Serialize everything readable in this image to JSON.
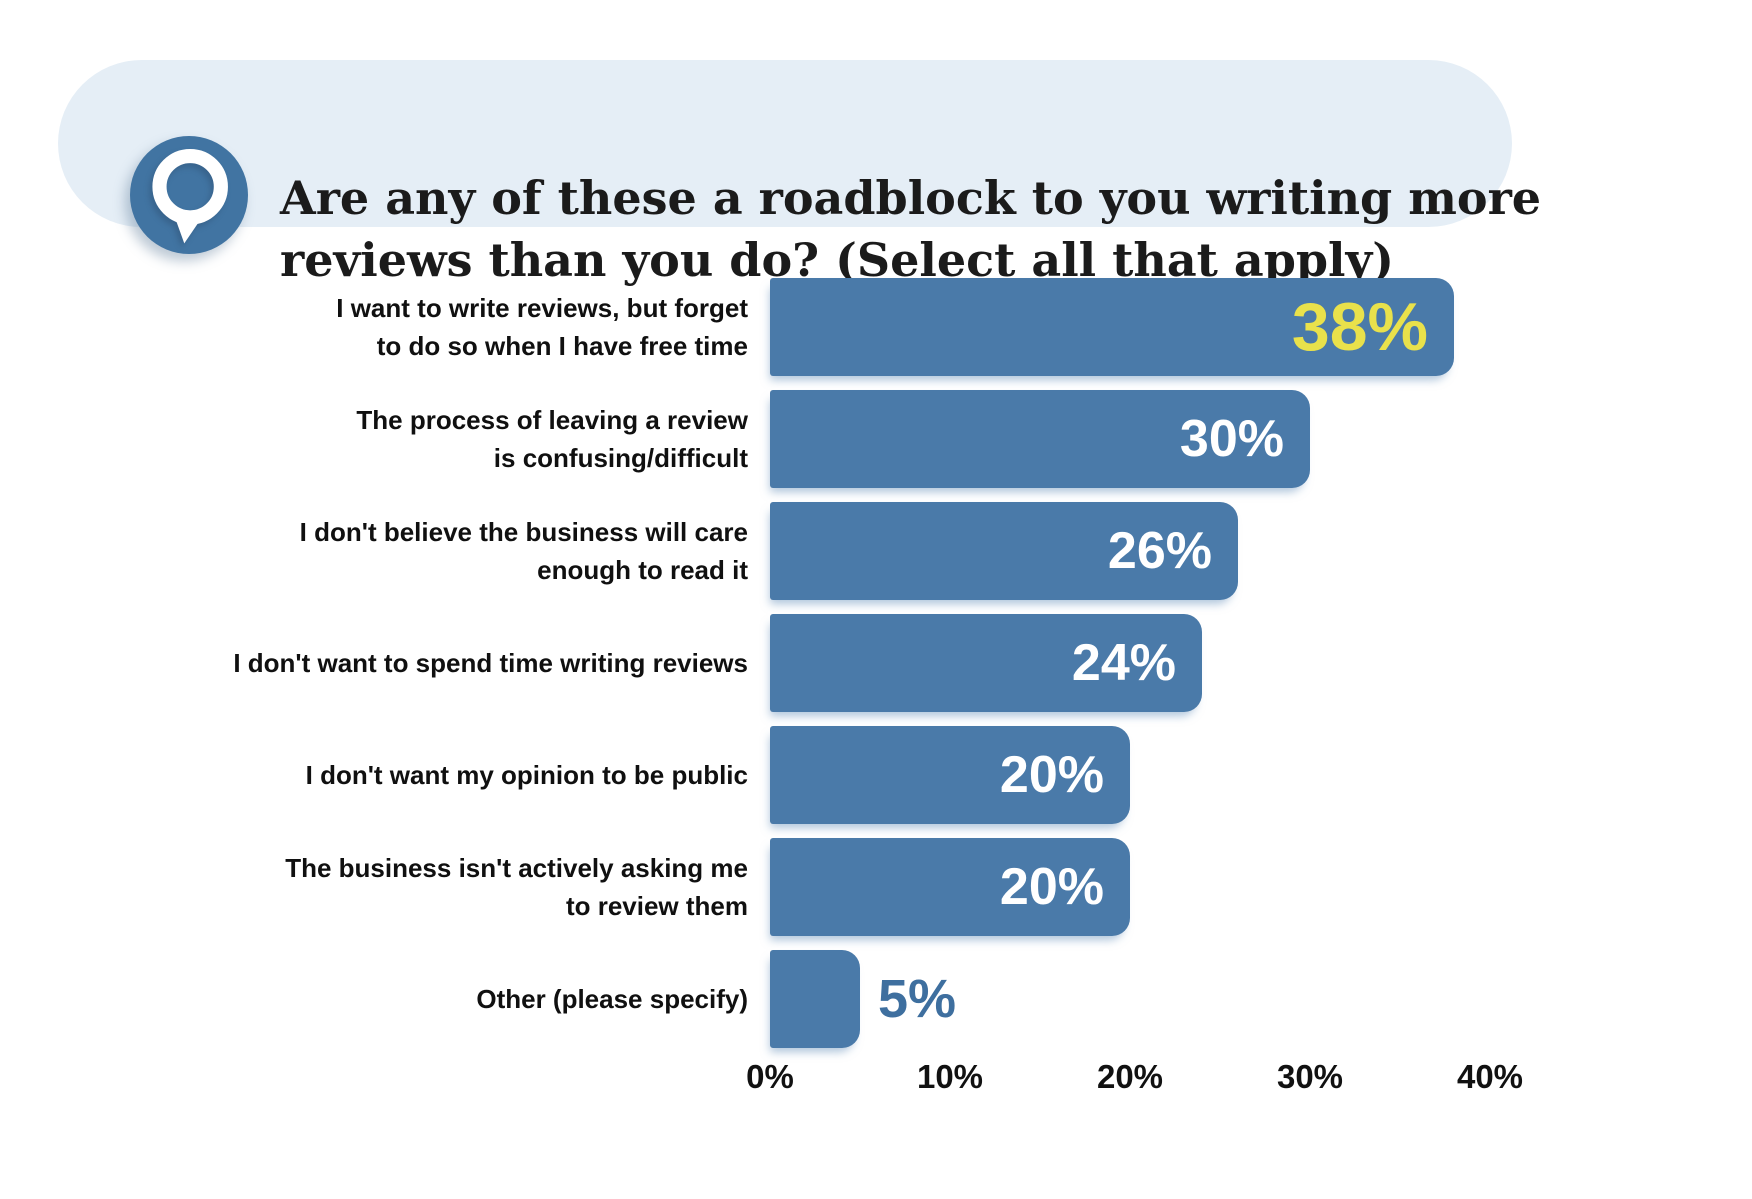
{
  "header": {
    "title": "Are any of these a roadblock to you writing more\nreviews than you do? (Select all that apply)",
    "icon": "magnifier-q-icon"
  },
  "colors": {
    "bar": "#4A7AA9",
    "bar_highlight_text": "#E9E14B",
    "bar_text": "#ffffff",
    "outside_label_text": "#3E6F9F",
    "pill_background": "#E5EEF6",
    "icon_circle": "#4174A2",
    "axis_text": "#111111"
  },
  "chart_data": {
    "type": "bar",
    "orientation": "horizontal",
    "title": "Are any of these a roadblock to you writing more reviews than you do? (Select all that apply)",
    "categories": [
      "I want to write reviews, but forget\nto do so when I have free time",
      "The process of leaving a review\nis confusing/difficult",
      "I don't believe the business will care\nenough to read it",
      "I don't want to spend time writing reviews",
      "I don't want my opinion to be public",
      "The business isn't actively asking me\nto review them",
      "Other (please specify)"
    ],
    "values": [
      38,
      30,
      26,
      24,
      20,
      20,
      5
    ],
    "value_labels": [
      "38%",
      "30%",
      "26%",
      "24%",
      "20%",
      "20%",
      "5%"
    ],
    "highlight_index": 0,
    "outside_label_index": 6,
    "x_tick_values": [
      0,
      10,
      20,
      30,
      40
    ],
    "x_tick_labels": [
      "0%",
      "10%",
      "20%",
      "30%",
      "40%"
    ],
    "xlim": [
      0,
      40
    ],
    "xlabel": "",
    "ylabel": "",
    "grid": false,
    "legend": false
  }
}
